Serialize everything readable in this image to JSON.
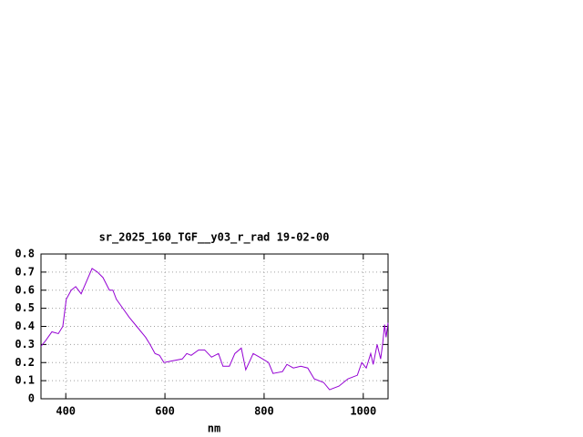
{
  "chart_data": {
    "type": "line",
    "title": "sr_2025_160_TGF__y03_r_rad 19-02-00",
    "xlabel": "nm",
    "x": [
      350,
      359,
      372,
      385,
      394,
      401,
      411,
      420,
      431,
      442,
      453,
      464,
      475,
      488,
      495,
      502,
      515,
      528,
      543,
      561,
      570,
      580,
      589,
      598,
      616,
      635,
      644,
      653,
      668,
      680,
      694,
      708,
      717,
      730,
      741,
      754,
      763,
      778,
      791,
      809,
      818,
      837,
      846,
      859,
      874,
      888,
      901,
      920,
      932,
      951,
      969,
      988,
      997,
      1006,
      1015,
      1020,
      1028,
      1035,
      1039,
      1043,
      1046,
      1050
    ],
    "values": [
      0.29,
      0.32,
      0.37,
      0.36,
      0.4,
      0.55,
      0.6,
      0.62,
      0.58,
      0.65,
      0.72,
      0.7,
      0.67,
      0.6,
      0.6,
      0.55,
      0.5,
      0.45,
      0.4,
      0.34,
      0.3,
      0.25,
      0.24,
      0.2,
      0.21,
      0.22,
      0.25,
      0.24,
      0.27,
      0.27,
      0.23,
      0.25,
      0.18,
      0.18,
      0.25,
      0.28,
      0.16,
      0.25,
      0.23,
      0.2,
      0.14,
      0.15,
      0.19,
      0.17,
      0.18,
      0.17,
      0.11,
      0.09,
      0.05,
      0.07,
      0.11,
      0.13,
      0.2,
      0.17,
      0.25,
      0.19,
      0.3,
      0.22,
      0.3,
      0.41,
      0.34,
      0.42
    ],
    "color": "#9400d3",
    "xlim": [
      350,
      1050
    ],
    "xticks": [
      400,
      600,
      800,
      1000
    ],
    "ylim": [
      0,
      0.8
    ],
    "yticks": [
      0,
      0.1,
      0.2,
      0.3,
      0.4,
      0.5,
      0.6,
      0.7,
      0.8
    ],
    "grid": true
  }
}
